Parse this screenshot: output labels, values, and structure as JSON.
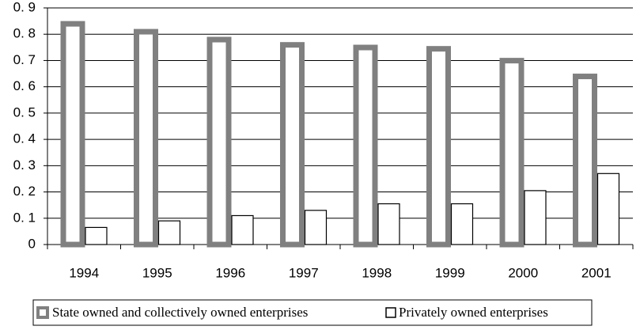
{
  "chart_data": {
    "type": "bar",
    "categories": [
      "1994",
      "1995",
      "1996",
      "1997",
      "1998",
      "1999",
      "2000",
      "2001"
    ],
    "series": [
      {
        "name": "State owned and collectively owned enterprises",
        "color": "#808080",
        "values": [
          0.85,
          0.82,
          0.79,
          0.77,
          0.76,
          0.755,
          0.71,
          0.65
        ]
      },
      {
        "name": "Privately owned enterprises",
        "color": "#000000",
        "values": [
          0.065,
          0.09,
          0.11,
          0.13,
          0.155,
          0.155,
          0.205,
          0.27
        ]
      }
    ],
    "ylim": [
      0,
      0.9
    ],
    "yticks": [
      0,
      {
        "value": 0.1,
        "label": "0. 1"
      },
      {
        "value": 0.2,
        "label": "0. 2"
      },
      {
        "value": 0.3,
        "label": "0. 3"
      },
      {
        "value": 0.4,
        "label": "0. 4"
      },
      {
        "value": 0.5,
        "label": "0. 5"
      },
      {
        "value": 0.6,
        "label": "0. 6"
      },
      {
        "value": 0.7,
        "label": "0. 7"
      },
      {
        "value": 0.8,
        "label": "0. 8"
      },
      {
        "value": 0.9,
        "label": "0. 9"
      }
    ],
    "grid": true,
    "legend": "bottom"
  }
}
